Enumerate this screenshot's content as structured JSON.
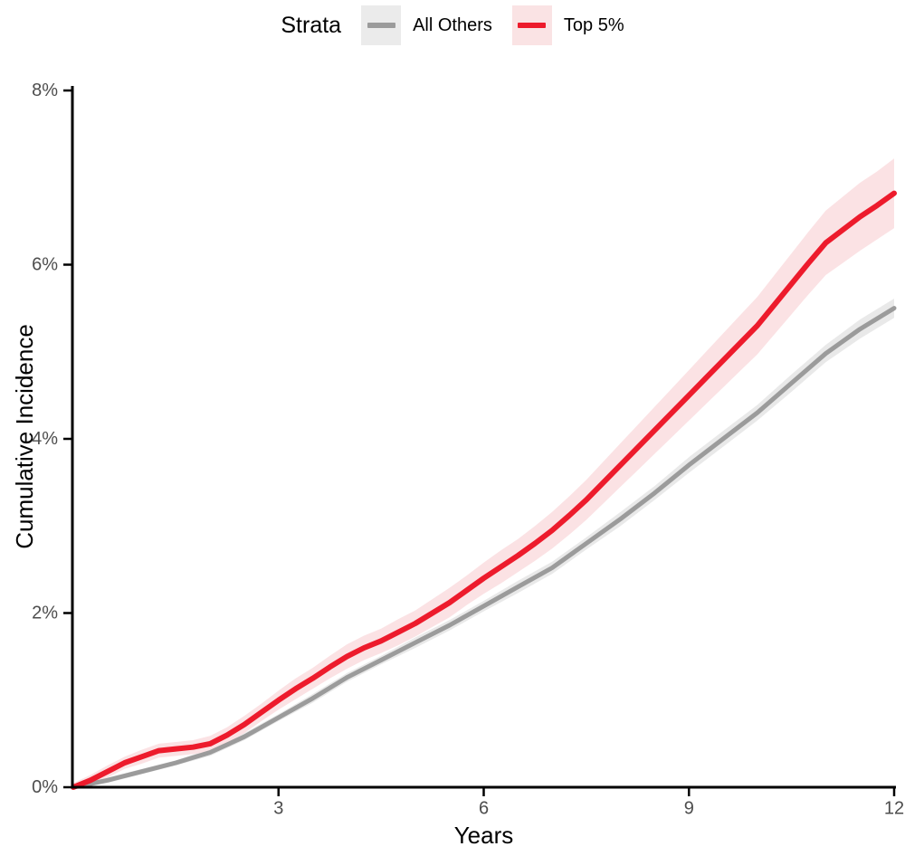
{
  "figure": {
    "legend": {
      "title": "Strata",
      "items": [
        {
          "label": "All Others",
          "line_color": "#9b9b9b",
          "key_bg": "#ebebeb"
        },
        {
          "label": "Top 5%",
          "line_color": "#ed1b2c",
          "key_bg": "#fae3e4"
        }
      ]
    },
    "y_axis": {
      "title": "Cumulative Incidence"
    },
    "x_axis": {
      "title": "Years"
    }
  },
  "chart_data": {
    "type": "line",
    "title": "",
    "xlabel": "Years",
    "ylabel": "Cumulative Incidence",
    "xlim": [
      0,
      12
    ],
    "ylim": [
      0,
      8
    ],
    "grid": false,
    "legend_position": "top",
    "x_ticks": [
      3,
      6,
      9,
      12
    ],
    "x_tick_labels": [
      "3",
      "6",
      "9",
      "12"
    ],
    "y_ticks": [
      0,
      2,
      4,
      6,
      8
    ],
    "y_tick_labels": [
      "0%",
      "2%",
      "4%",
      "6%",
      "8%"
    ],
    "axis_color": "#000000",
    "tick_text_color": "#4d4d4d",
    "series": [
      {
        "name": "All Others",
        "slug": "all-others",
        "color": "#9b9b9b",
        "band_color": "#e9e9e9",
        "line_width": 5,
        "x": [
          0,
          0.5,
          1,
          1.5,
          2,
          2.5,
          3,
          3.5,
          4,
          4.5,
          5,
          5.5,
          6,
          6.5,
          7,
          7.5,
          8,
          8.5,
          9,
          9.5,
          10,
          10.5,
          11,
          11.5,
          12
        ],
        "y": [
          0,
          0.08,
          0.18,
          0.28,
          0.4,
          0.58,
          0.8,
          1.02,
          1.26,
          1.46,
          1.66,
          1.86,
          2.08,
          2.3,
          2.52,
          2.8,
          3.08,
          3.38,
          3.7,
          4.0,
          4.3,
          4.64,
          4.98,
          5.26,
          5.5
        ],
        "ci_halfwidth": [
          0.03,
          0.03,
          0.03,
          0.03,
          0.04,
          0.04,
          0.04,
          0.05,
          0.05,
          0.05,
          0.06,
          0.06,
          0.06,
          0.07,
          0.07,
          0.07,
          0.08,
          0.08,
          0.09,
          0.09,
          0.09,
          0.1,
          0.1,
          0.11,
          0.11
        ]
      },
      {
        "name": "Top 5%",
        "slug": "top-5",
        "color": "#ed1b2c",
        "band_color": "#fbe2e4",
        "line_width": 6,
        "x": [
          0,
          0.25,
          0.5,
          0.75,
          1,
          1.25,
          1.5,
          1.75,
          2,
          2.25,
          2.5,
          2.75,
          3,
          3.25,
          3.5,
          3.75,
          4,
          4.25,
          4.5,
          4.75,
          5,
          5.25,
          5.5,
          5.75,
          6,
          6.25,
          6.5,
          6.75,
          7,
          7.25,
          7.5,
          7.75,
          8,
          8.25,
          8.5,
          8.75,
          9,
          9.25,
          9.5,
          9.75,
          10,
          10.25,
          10.5,
          10.75,
          11,
          11.25,
          11.5,
          11.75,
          12
        ],
        "y": [
          0,
          0.08,
          0.18,
          0.28,
          0.35,
          0.42,
          0.44,
          0.46,
          0.5,
          0.6,
          0.72,
          0.86,
          1.0,
          1.13,
          1.25,
          1.38,
          1.5,
          1.6,
          1.68,
          1.78,
          1.88,
          2.0,
          2.12,
          2.26,
          2.4,
          2.53,
          2.66,
          2.8,
          2.95,
          3.12,
          3.3,
          3.5,
          3.7,
          3.9,
          4.1,
          4.3,
          4.5,
          4.7,
          4.9,
          5.1,
          5.3,
          5.54,
          5.78,
          6.02,
          6.25,
          6.4,
          6.55,
          6.68,
          6.82
        ],
        "ci_halfwidth": [
          0.05,
          0.06,
          0.07,
          0.07,
          0.08,
          0.08,
          0.08,
          0.08,
          0.09,
          0.09,
          0.1,
          0.1,
          0.11,
          0.12,
          0.12,
          0.13,
          0.14,
          0.14,
          0.14,
          0.15,
          0.15,
          0.16,
          0.17,
          0.17,
          0.18,
          0.19,
          0.19,
          0.2,
          0.21,
          0.22,
          0.23,
          0.24,
          0.25,
          0.26,
          0.27,
          0.28,
          0.29,
          0.3,
          0.31,
          0.32,
          0.33,
          0.34,
          0.35,
          0.36,
          0.37,
          0.38,
          0.39,
          0.39,
          0.4
        ]
      }
    ]
  }
}
